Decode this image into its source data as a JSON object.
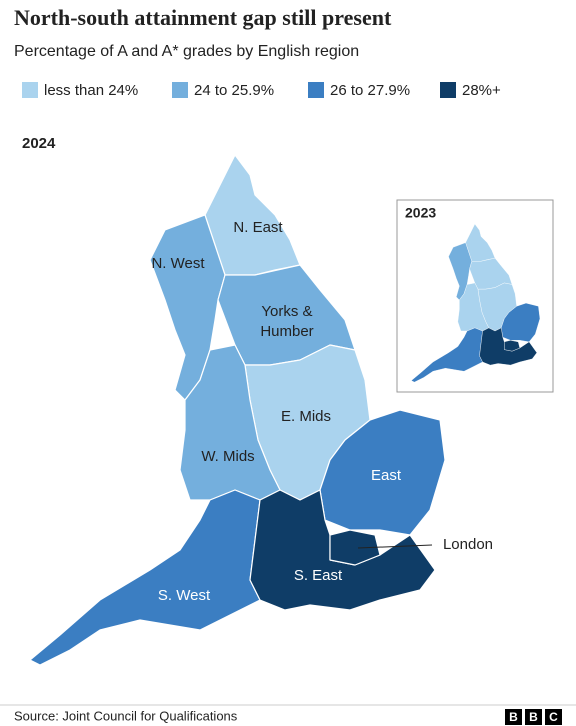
{
  "header": {
    "title": "North-south attainment gap still present",
    "subtitle": "Percentage of A and A* grades by English region"
  },
  "legend": [
    {
      "label": "less than 24%",
      "color": "#aad3ee"
    },
    {
      "label": "24 to 25.9%",
      "color": "#74afdd"
    },
    {
      "label": "26 to 27.9%",
      "color": "#3b7ec2"
    },
    {
      "label": "28%+",
      "color": "#0f3d67"
    }
  ],
  "map": {
    "year": "2024",
    "inset_year": "2023",
    "regions": [
      {
        "label": "N. East",
        "band_2024": "less than 24%",
        "band_2023": "less than 24%"
      },
      {
        "label": "N. West",
        "band_2024": "24 to 25.9%",
        "band_2023": "24 to 25.9%"
      },
      {
        "label": "Yorks & Humber",
        "band_2024": "24 to 25.9%",
        "band_2023": "less than 24%"
      },
      {
        "label": "E. Mids",
        "band_2024": "less than 24%",
        "band_2023": "less than 24%"
      },
      {
        "label": "W. Mids",
        "band_2024": "24 to 25.9%",
        "band_2023": "less than 24%"
      },
      {
        "label": "East",
        "band_2024": "26 to 27.9%",
        "band_2023": "26 to 27.9%"
      },
      {
        "label": "S. West",
        "band_2024": "26 to 27.9%",
        "band_2023": "26 to 27.9%"
      },
      {
        "label": "S. East",
        "band_2024": "28%+",
        "band_2023": "28%+"
      },
      {
        "label": "London",
        "band_2024": "28%+",
        "band_2023": "28%+"
      }
    ]
  },
  "footer": {
    "source": "Source: Joint Council for Qualifications",
    "logo": [
      "B",
      "B",
      "C"
    ]
  }
}
